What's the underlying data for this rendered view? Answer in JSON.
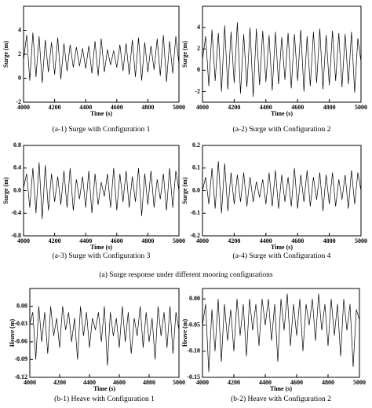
{
  "figure_caption": "(a) Surge response under different mooring configurations",
  "chart_data": [
    {
      "type": "line",
      "caption": "(a-1) Surge with Configuration 1",
      "x_label": "Time (s)",
      "y_label": "Surge (m)",
      "color": "#000000",
      "x": [
        4000,
        4020,
        4040,
        4060,
        4080,
        4100,
        4120,
        4140,
        4160,
        4180,
        4200,
        4220,
        4240,
        4260,
        4280,
        4300,
        4320,
        4340,
        4360,
        4380,
        4400,
        4420,
        4440,
        4460,
        4480,
        4500,
        4520,
        4540,
        4560,
        4580,
        4600,
        4620,
        4640,
        4660,
        4680,
        4700,
        4720,
        4740,
        4760,
        4780,
        4800,
        4820,
        4840,
        4860,
        4880,
        4900,
        4920,
        4940,
        4960,
        4980,
        5000
      ],
      "values": [
        1.5,
        3.6,
        -0.2,
        3.8,
        0.1,
        3.5,
        -0.4,
        3.2,
        0.5,
        3.0,
        0.3,
        3.4,
        -0.1,
        2.9,
        0.6,
        2.8,
        0.9,
        2.6,
        1.0,
        2.5,
        0.8,
        2.7,
        0.4,
        3.1,
        0.2,
        3.3,
        0.5,
        2.4,
        1.1,
        2.3,
        0.9,
        2.8,
        0.6,
        2.9,
        0.3,
        3.2,
        0.1,
        3.4,
        -0.2,
        3.0,
        0.5,
        2.7,
        0.7,
        3.3,
        0.2,
        3.6,
        -0.3,
        3.1,
        0.4,
        3.5,
        1.2
      ],
      "xlim": [
        4000,
        5000
      ],
      "xticks": [
        4000,
        4200,
        4400,
        4600,
        4800,
        5000
      ],
      "ylim": [
        -2,
        6
      ],
      "yticks": [
        -2,
        0,
        2,
        4
      ]
    },
    {
      "type": "line",
      "caption": "(a-2) Surge with Configuration 2",
      "x_label": "Time (s)",
      "y_label": "Surge (m)",
      "color": "#000000",
      "x": [
        4000,
        4020,
        4040,
        4060,
        4080,
        4100,
        4120,
        4140,
        4160,
        4180,
        4200,
        4220,
        4240,
        4260,
        4280,
        4300,
        4320,
        4340,
        4360,
        4380,
        4400,
        4420,
        4440,
        4460,
        4480,
        4500,
        4520,
        4540,
        4560,
        4580,
        4600,
        4620,
        4640,
        4660,
        4680,
        4700,
        4720,
        4740,
        4760,
        4780,
        4800,
        4820,
        4840,
        4860,
        4880,
        4900,
        4920,
        4940,
        4960,
        4980,
        5000
      ],
      "values": [
        1.0,
        3.2,
        -1.5,
        3.8,
        -1.0,
        3.5,
        -2.0,
        4.2,
        -1.8,
        3.6,
        -1.2,
        4.5,
        -2.2,
        3.4,
        -1.6,
        4.0,
        -2.5,
        3.9,
        -1.4,
        3.7,
        -1.1,
        3.3,
        -1.9,
        3.6,
        -1.3,
        3.1,
        -0.9,
        3.5,
        -1.7,
        3.4,
        -1.0,
        3.8,
        -2.0,
        3.2,
        -1.5,
        3.6,
        -1.2,
        3.9,
        -1.8,
        3.3,
        -1.4,
        3.7,
        -1.0,
        3.5,
        -1.6,
        3.4,
        -1.3,
        3.6,
        -2.1,
        3.0,
        0.8
      ],
      "xlim": [
        4000,
        5000
      ],
      "xticks": [
        4000,
        4200,
        4400,
        4600,
        4800,
        5000
      ],
      "ylim": [
        -3,
        6
      ],
      "yticks": [
        -2,
        0,
        2,
        4
      ]
    },
    {
      "type": "line",
      "caption": "(a-3) Surge with Configuration 3",
      "x_label": "Time (s)",
      "y_label": "Surge (m)",
      "color": "#000000",
      "x": [
        4000,
        4020,
        4040,
        4060,
        4080,
        4100,
        4120,
        4140,
        4160,
        4180,
        4200,
        4220,
        4240,
        4260,
        4280,
        4300,
        4320,
        4340,
        4360,
        4380,
        4400,
        4420,
        4440,
        4460,
        4480,
        4500,
        4520,
        4540,
        4560,
        4580,
        4600,
        4620,
        4640,
        4660,
        4680,
        4700,
        4720,
        4740,
        4760,
        4780,
        4800,
        4820,
        4840,
        4860,
        4880,
        4900,
        4920,
        4940,
        4960,
        4980,
        5000
      ],
      "values": [
        0.05,
        0.3,
        -0.3,
        0.4,
        -0.4,
        0.5,
        -0.5,
        0.45,
        -0.35,
        0.3,
        -0.2,
        0.25,
        -0.25,
        0.35,
        -0.3,
        0.4,
        -0.35,
        0.2,
        -0.15,
        0.25,
        -0.3,
        0.35,
        -0.4,
        0.3,
        -0.25,
        0.15,
        -0.1,
        0.3,
        -0.3,
        0.4,
        -0.35,
        0.3,
        -0.2,
        0.35,
        -0.3,
        0.25,
        -0.2,
        0.4,
        -0.45,
        0.3,
        -0.25,
        0.35,
        -0.3,
        0.2,
        -0.15,
        0.3,
        -0.35,
        0.4,
        -0.3,
        0.35,
        0.0
      ],
      "xlim": [
        4000,
        5000
      ],
      "xticks": [
        4000,
        4200,
        4400,
        4600,
        4800,
        5000
      ],
      "ylim": [
        -0.8,
        0.8
      ],
      "yticks": [
        -0.8,
        -0.4,
        {
          "value": 0,
          "label": "0.0"
        },
        0.4,
        0.8
      ]
    },
    {
      "type": "line",
      "caption": "(a-4) Surge with Configuration 4",
      "x_label": "Time (s)",
      "y_label": "Surge (m)",
      "color": "#000000",
      "x": [
        4000,
        4020,
        4040,
        4060,
        4080,
        4100,
        4120,
        4140,
        4160,
        4180,
        4200,
        4220,
        4240,
        4260,
        4280,
        4300,
        4320,
        4340,
        4360,
        4380,
        4400,
        4420,
        4440,
        4460,
        4480,
        4500,
        4520,
        4540,
        4560,
        4580,
        4600,
        4620,
        4640,
        4660,
        4680,
        4700,
        4720,
        4740,
        4760,
        4780,
        4800,
        4820,
        4840,
        4860,
        4880,
        4900,
        4920,
        4940,
        4960,
        4980,
        5000
      ],
      "values": [
        0.0,
        0.06,
        -0.06,
        0.1,
        -0.08,
        0.13,
        -0.1,
        0.12,
        -0.09,
        0.08,
        -0.06,
        0.07,
        -0.05,
        0.08,
        -0.07,
        0.06,
        -0.05,
        0.04,
        -0.03,
        0.05,
        -0.06,
        0.08,
        -0.07,
        0.09,
        -0.08,
        0.07,
        -0.05,
        0.06,
        -0.07,
        0.1,
        -0.08,
        0.07,
        -0.05,
        0.09,
        -0.07,
        0.06,
        -0.04,
        0.08,
        -0.09,
        0.07,
        -0.06,
        0.08,
        -0.07,
        0.05,
        -0.04,
        0.07,
        -0.08,
        0.09,
        -0.06,
        0.08,
        0.0
      ],
      "xlim": [
        4000,
        5000
      ],
      "xticks": [
        4000,
        4200,
        4400,
        4600,
        4800,
        5000
      ],
      "ylim": [
        -0.2,
        0.2
      ],
      "yticks": [
        -0.2,
        -0.1,
        {
          "value": 0,
          "label": "0.0"
        },
        0.1,
        0.2
      ]
    },
    {
      "type": "line",
      "caption": "(b-1) Heave with Configuration 1",
      "x_label": "Time (s)",
      "y_label": "Heave (m)",
      "color": "#000000",
      "x": [
        4000,
        4020,
        4040,
        4060,
        4080,
        4100,
        4120,
        4140,
        4160,
        4180,
        4200,
        4220,
        4240,
        4260,
        4280,
        4300,
        4320,
        4340,
        4360,
        4380,
        4400,
        4420,
        4440,
        4460,
        4480,
        4500,
        4520,
        4540,
        4560,
        4580,
        4600,
        4620,
        4640,
        4660,
        4680,
        4700,
        4720,
        4740,
        4760,
        4780,
        4800,
        4820,
        4840,
        4860,
        4880,
        4900,
        4920,
        4940,
        4960,
        4980,
        5000
      ],
      "values": [
        -0.03,
        -0.01,
        -0.09,
        0.0,
        -0.06,
        -0.01,
        -0.08,
        0.0,
        -0.05,
        -0.02,
        -0.07,
        0.0,
        -0.04,
        -0.01,
        -0.06,
        -0.02,
        -0.09,
        0.0,
        -0.05,
        -0.01,
        -0.07,
        -0.02,
        -0.04,
        -0.01,
        -0.06,
        0.0,
        -0.1,
        -0.01,
        -0.05,
        -0.02,
        -0.07,
        0.0,
        -0.06,
        -0.01,
        -0.08,
        -0.02,
        -0.05,
        0.0,
        -0.07,
        -0.01,
        -0.06,
        -0.02,
        -0.09,
        0.0,
        -0.05,
        -0.01,
        -0.07,
        0.0,
        -0.08,
        -0.01,
        -0.04
      ],
      "xlim": [
        4000,
        5000
      ],
      "xticks": [
        4000,
        4200,
        4400,
        4600,
        4800,
        5000
      ],
      "ylim": [
        -0.12,
        0.03
      ],
      "yticks": [
        -0.12,
        -0.09,
        -0.06,
        -0.03,
        {
          "value": 0,
          "label": "0.00"
        }
      ]
    },
    {
      "type": "line",
      "caption": "(b-2) Heave with Configuration 2",
      "x_label": "Time (s)",
      "y_label": "Heave (m)",
      "color": "#000000",
      "x": [
        4000,
        4020,
        4040,
        4060,
        4080,
        4100,
        4120,
        4140,
        4160,
        4180,
        4200,
        4220,
        4240,
        4260,
        4280,
        4300,
        4320,
        4340,
        4360,
        4380,
        4400,
        4420,
        4440,
        4460,
        4480,
        4500,
        4520,
        4540,
        4560,
        4580,
        4600,
        4620,
        4640,
        4660,
        4680,
        4700,
        4720,
        4740,
        4760,
        4780,
        4800,
        4820,
        4840,
        4860,
        4880,
        4900,
        4920,
        4940,
        4960,
        4980,
        5000
      ],
      "values": [
        -0.05,
        -0.01,
        -0.14,
        -0.02,
        -0.1,
        0.0,
        -0.12,
        -0.01,
        -0.08,
        -0.02,
        -0.1,
        0.0,
        -0.07,
        -0.01,
        -0.11,
        0.0,
        -0.06,
        -0.01,
        -0.09,
        0.0,
        -0.05,
        0.0,
        -0.08,
        -0.01,
        -0.12,
        0.0,
        -0.06,
        0.01,
        -0.09,
        -0.01,
        -0.07,
        0.0,
        -0.1,
        -0.01,
        -0.05,
        0.0,
        -0.08,
        0.01,
        -0.06,
        -0.01,
        -0.09,
        0.0,
        -0.07,
        -0.01,
        -0.11,
        0.0,
        -0.06,
        -0.01,
        -0.13,
        -0.02,
        -0.04
      ],
      "xlim": [
        4000,
        5000
      ],
      "xticks": [
        4000,
        4200,
        4400,
        4600,
        4800,
        5000
      ],
      "ylim": [
        -0.15,
        0.02
      ],
      "yticks": [
        -0.15,
        {
          "value": -0.1,
          "label": "-0.10"
        },
        -0.05,
        {
          "value": 0,
          "label": "0.00"
        }
      ]
    }
  ]
}
